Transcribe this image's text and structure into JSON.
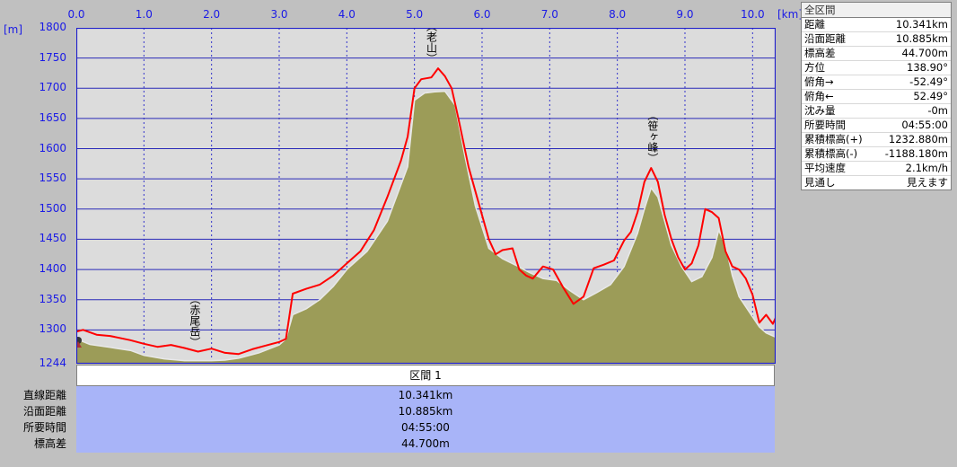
{
  "units": {
    "y": "[m]",
    "x": "[km]"
  },
  "chart_data": {
    "type": "area",
    "xlim": [
      0,
      10.341
    ],
    "ylim": [
      1244,
      1800
    ],
    "x_ticks": [
      "0.0",
      "1.0",
      "2.0",
      "3.0",
      "4.0",
      "5.0",
      "6.0",
      "7.0",
      "8.0",
      "9.0",
      "10.0"
    ],
    "x_tick_values": [
      0,
      1,
      2,
      3,
      4,
      5,
      6,
      7,
      8,
      9,
      10
    ],
    "y_ticks": [
      "1800",
      "1750",
      "1700",
      "1650",
      "1600",
      "1550",
      "1500",
      "1450",
      "1400",
      "1350",
      "1300",
      "1244"
    ],
    "y_tick_values": [
      1800,
      1750,
      1700,
      1650,
      1600,
      1550,
      1500,
      1450,
      1400,
      1350,
      1300,
      1244
    ],
    "grid": true,
    "series": [
      {
        "color": "#ff0000",
        "x": [
          0,
          0.1,
          0.3,
          0.5,
          0.8,
          1.0,
          1.2,
          1.4,
          1.6,
          1.8,
          2.0,
          2.2,
          2.4,
          2.6,
          2.8,
          3.0,
          3.1,
          3.2,
          3.4,
          3.6,
          3.8,
          4.0,
          4.2,
          4.4,
          4.6,
          4.8,
          4.9,
          5.0,
          5.1,
          5.25,
          5.35,
          5.45,
          5.55,
          5.65,
          5.8,
          5.95,
          6.1,
          6.2,
          6.3,
          6.45,
          6.55,
          6.65,
          6.75,
          6.9,
          7.05,
          7.2,
          7.35,
          7.5,
          7.65,
          7.8,
          7.95,
          8.1,
          8.2,
          8.3,
          8.4,
          8.5,
          8.6,
          8.7,
          8.8,
          8.9,
          9.0,
          9.1,
          9.2,
          9.3,
          9.4,
          9.5,
          9.6,
          9.7,
          9.8,
          9.9,
          10.0,
          10.1,
          10.2,
          10.3,
          10.341
        ],
        "y": [
          1297,
          1300,
          1292,
          1290,
          1283,
          1277,
          1272,
          1275,
          1270,
          1264,
          1269,
          1262,
          1260,
          1268,
          1274,
          1280,
          1285,
          1360,
          1368,
          1375,
          1390,
          1410,
          1430,
          1465,
          1520,
          1580,
          1620,
          1700,
          1715,
          1718,
          1733,
          1720,
          1700,
          1650,
          1570,
          1510,
          1450,
          1425,
          1432,
          1435,
          1400,
          1390,
          1385,
          1405,
          1400,
          1370,
          1343,
          1355,
          1402,
          1408,
          1415,
          1448,
          1462,
          1495,
          1545,
          1568,
          1545,
          1490,
          1450,
          1420,
          1400,
          1410,
          1440,
          1500,
          1495,
          1485,
          1430,
          1405,
          1400,
          1385,
          1358,
          1312,
          1325,
          1310,
          1320
        ]
      },
      {
        "color": "#9c9c58",
        "x": [
          0,
          0.2,
          0.5,
          0.8,
          1.0,
          1.3,
          1.6,
          2.0,
          2.2,
          2.4,
          2.7,
          3.0,
          3.1,
          3.2,
          3.4,
          3.6,
          3.8,
          4.0,
          4.3,
          4.6,
          4.9,
          5.0,
          5.15,
          5.3,
          5.45,
          5.6,
          5.75,
          5.9,
          6.1,
          6.3,
          6.5,
          6.7,
          6.9,
          7.1,
          7.3,
          7.5,
          7.7,
          7.9,
          8.1,
          8.3,
          8.4,
          8.5,
          8.6,
          8.7,
          8.8,
          8.95,
          9.1,
          9.25,
          9.4,
          9.5,
          9.6,
          9.7,
          9.8,
          9.95,
          10.1,
          10.2,
          10.3,
          10.341
        ],
        "y": [
          1285,
          1276,
          1271,
          1266,
          1258,
          1252,
          1249,
          1249,
          1250,
          1253,
          1262,
          1275,
          1285,
          1325,
          1335,
          1350,
          1372,
          1400,
          1430,
          1480,
          1570,
          1680,
          1692,
          1694,
          1695,
          1672,
          1585,
          1505,
          1435,
          1418,
          1407,
          1395,
          1385,
          1382,
          1365,
          1350,
          1362,
          1375,
          1405,
          1460,
          1500,
          1535,
          1520,
          1480,
          1440,
          1405,
          1380,
          1388,
          1420,
          1465,
          1440,
          1390,
          1355,
          1330,
          1305,
          1295,
          1290,
          1288
        ]
      }
    ],
    "annotations": [
      {
        "text": "（老山）",
        "x": 5.25,
        "y": 1735
      },
      {
        "text": "（笹ヶ峰）",
        "x": 8.52,
        "y": 1570
      },
      {
        "text": "（赤尾岳）",
        "x": 1.75,
        "y": 1265
      }
    ]
  },
  "summary": {
    "title": "全区間",
    "rows": [
      {
        "label": "距離",
        "value": "10.341km"
      },
      {
        "label": "沿面距離",
        "value": "10.885km"
      },
      {
        "label": "標高差",
        "value": "44.700m"
      },
      {
        "label": "方位",
        "value": "138.90°"
      },
      {
        "label": "俯角→",
        "value": "-52.49°"
      },
      {
        "label": "俯角←",
        "value": "52.49°"
      },
      {
        "label": "沈み量",
        "value": "-0m"
      },
      {
        "label": "所要時間",
        "value": "04:55:00"
      },
      {
        "label": "累積標高(+)",
        "value": "1232.880m"
      },
      {
        "label": "累積標高(-)",
        "value": "-1188.180m"
      },
      {
        "label": "平均速度",
        "value": "2.1km/h"
      },
      {
        "label": "見通し",
        "value": "見えます"
      }
    ]
  },
  "section": {
    "title": "区間 1",
    "rows": [
      {
        "label": "直線距離",
        "value": "10.341km"
      },
      {
        "label": "沿面距離",
        "value": "10.885km"
      },
      {
        "label": "所要時間",
        "value": "04:55:00"
      },
      {
        "label": "標高差",
        "value": "44.700m"
      }
    ]
  }
}
